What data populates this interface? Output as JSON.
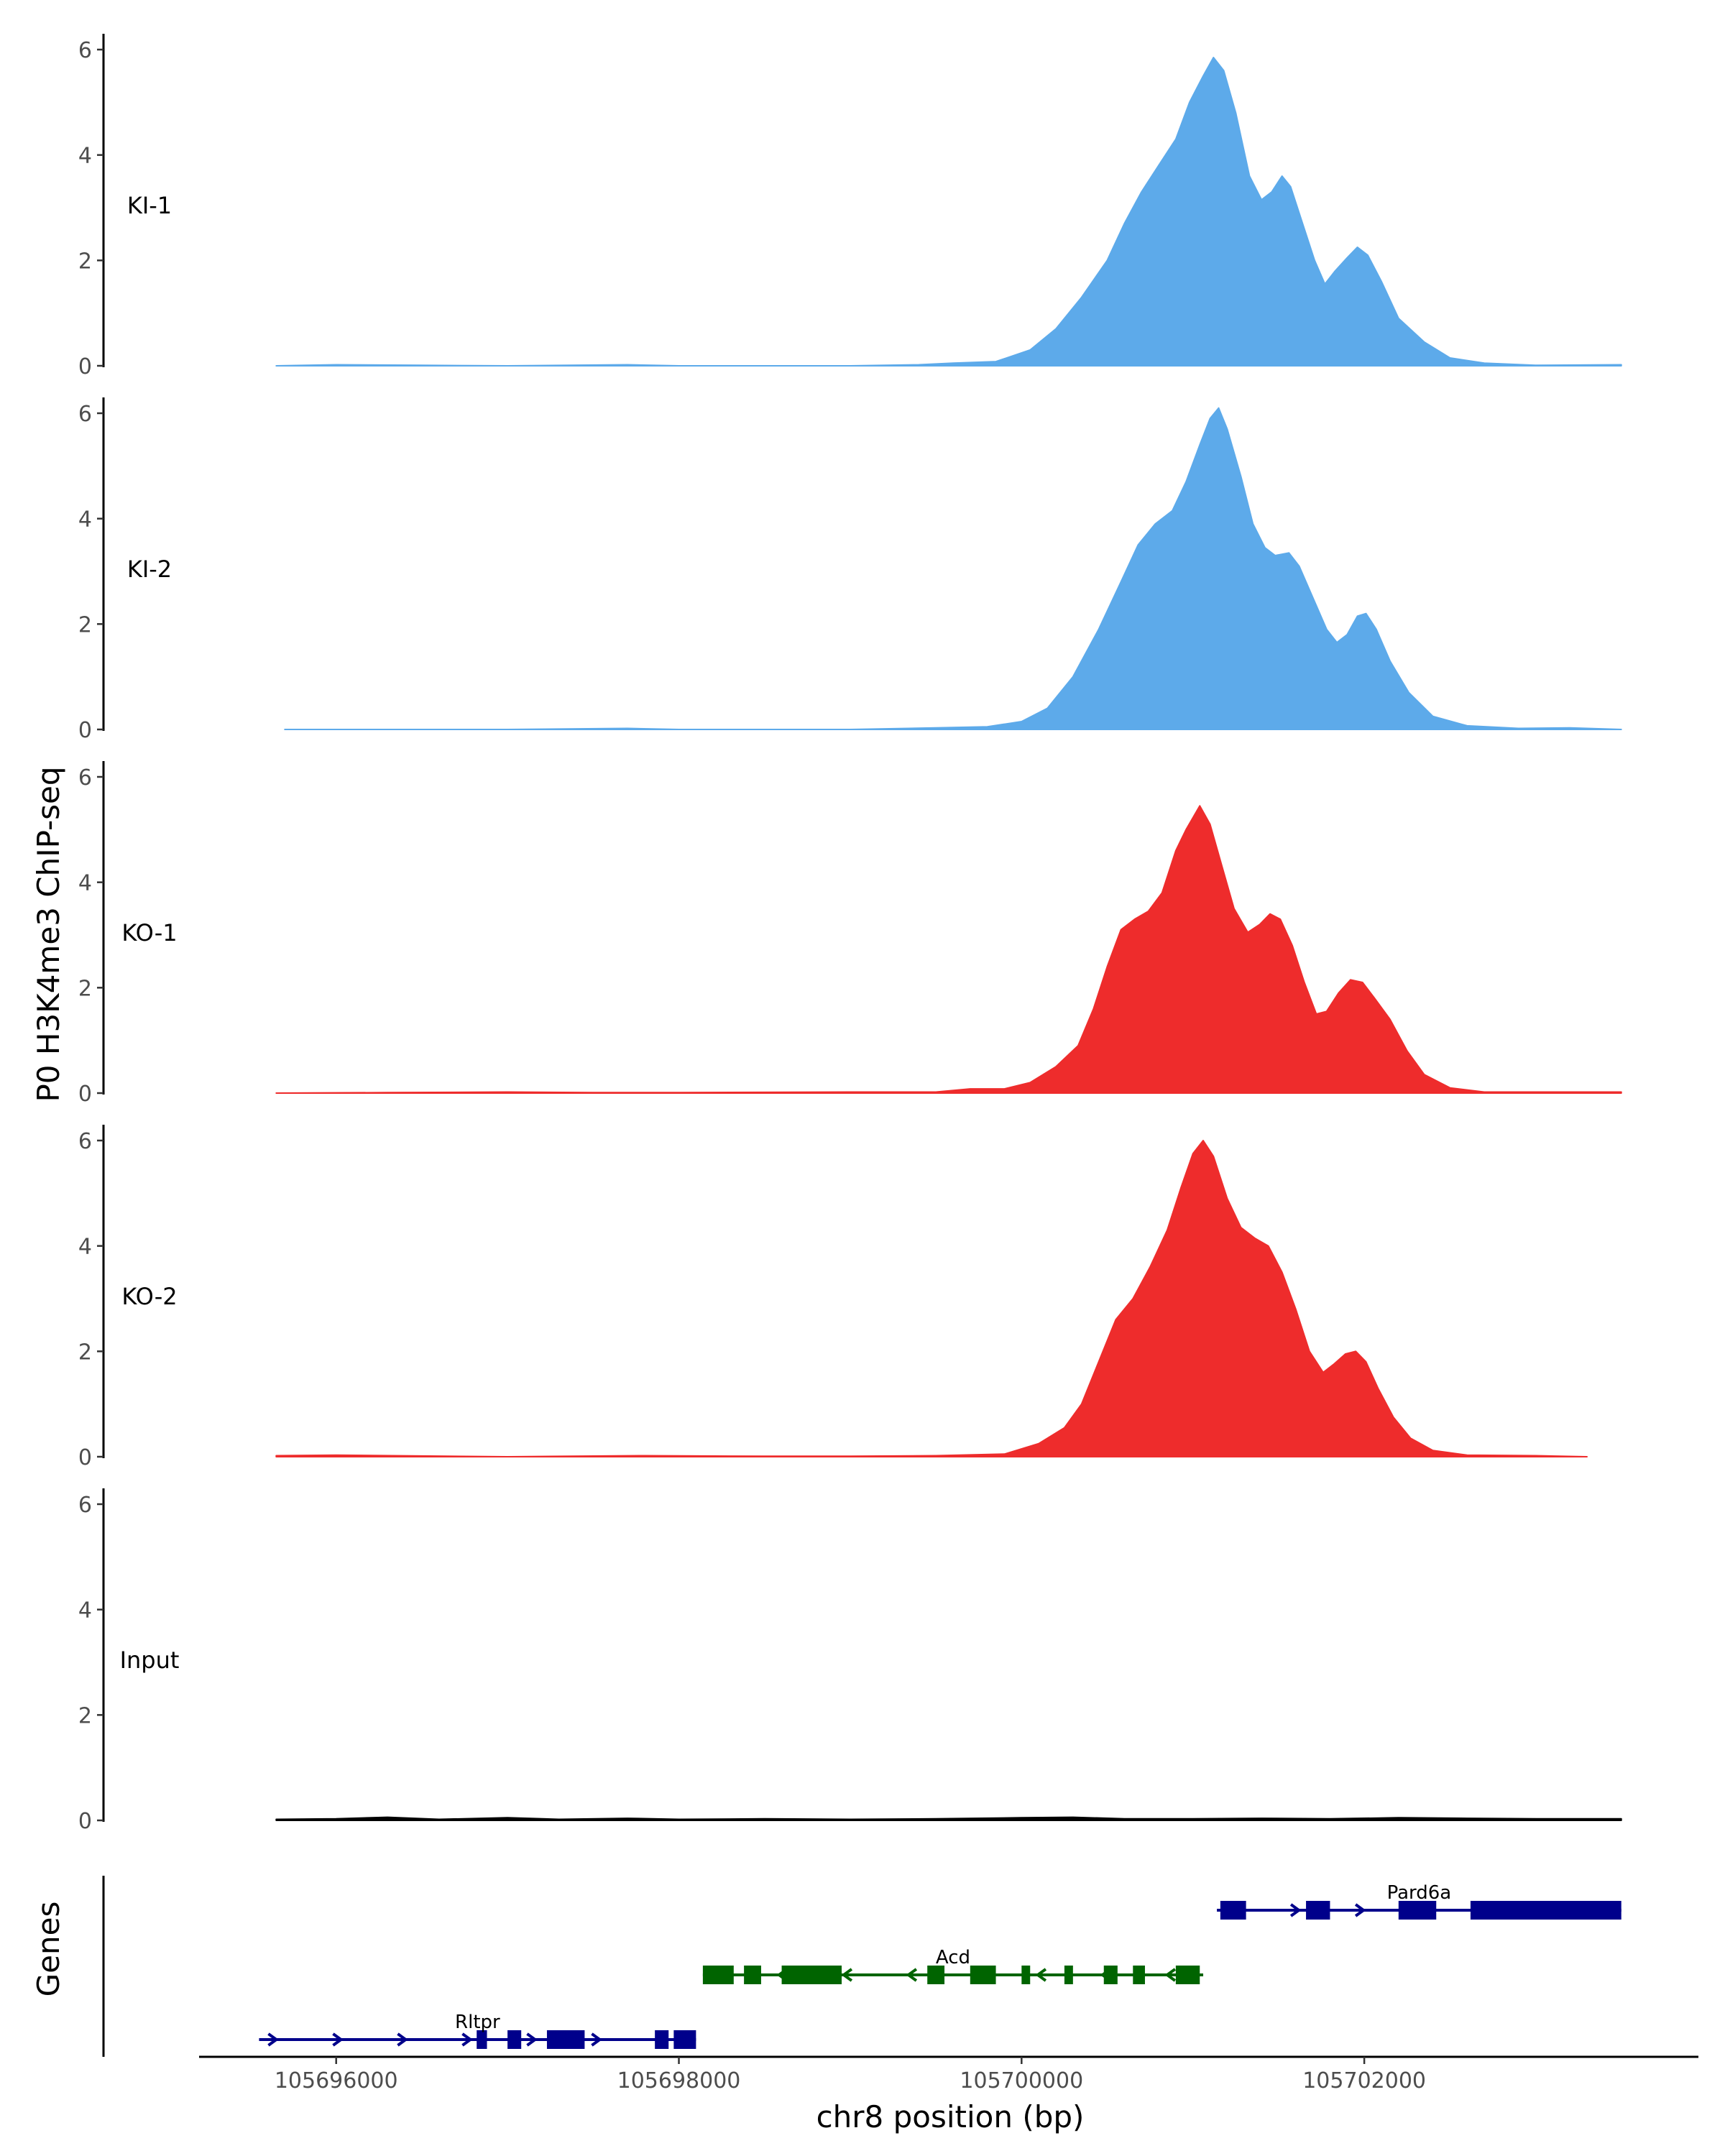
{
  "chart_data": {
    "type": "area",
    "ylabel": "P0 H3K4me3 ChIP-seq",
    "xlabel": "chr8 position (bp)",
    "genes_axis_label": "Genes",
    "xlim": [
      105695200,
      105703950
    ],
    "ylim": [
      0,
      6.3
    ],
    "x_ticks": [
      105696000,
      105698000,
      105700000,
      105702000
    ],
    "x_tick_labels": [
      "105696000",
      "105698000",
      "105700000",
      "105702000"
    ],
    "y_ticks": [
      0,
      2,
      4,
      6
    ],
    "y_tick_labels": [
      "0",
      "2",
      "4",
      "6"
    ],
    "tracks": [
      {
        "name": "KI-1",
        "color": "#5DAAEA",
        "points": [
          [
            105695650,
            0
          ],
          [
            105696000,
            0.02
          ],
          [
            105696500,
            0.01
          ],
          [
            105697000,
            0
          ],
          [
            105697700,
            0.02
          ],
          [
            105698000,
            0
          ],
          [
            105699000,
            0
          ],
          [
            105699400,
            0.02
          ],
          [
            105699600,
            0.05
          ],
          [
            105699850,
            0.08
          ],
          [
            105700050,
            0.3
          ],
          [
            105700200,
            0.7
          ],
          [
            105700350,
            1.3
          ],
          [
            105700500,
            2.0
          ],
          [
            105700600,
            2.7
          ],
          [
            105700700,
            3.3
          ],
          [
            105700800,
            3.8
          ],
          [
            105700900,
            4.3
          ],
          [
            105700980,
            5.0
          ],
          [
            105701060,
            5.5
          ],
          [
            105701120,
            5.85
          ],
          [
            105701180,
            5.6
          ],
          [
            105701250,
            4.8
          ],
          [
            105701330,
            3.6
          ],
          [
            105701400,
            3.15
          ],
          [
            105701460,
            3.3
          ],
          [
            105701520,
            3.6
          ],
          [
            105701570,
            3.4
          ],
          [
            105701640,
            2.7
          ],
          [
            105701710,
            2.0
          ],
          [
            105701770,
            1.55
          ],
          [
            105701830,
            1.8
          ],
          [
            105701900,
            2.05
          ],
          [
            105701960,
            2.25
          ],
          [
            105702020,
            2.1
          ],
          [
            105702100,
            1.6
          ],
          [
            105702200,
            0.9
          ],
          [
            105702350,
            0.45
          ],
          [
            105702500,
            0.15
          ],
          [
            105702700,
            0.05
          ],
          [
            105703000,
            0.01
          ],
          [
            105703500,
            0.02
          ]
        ]
      },
      {
        "name": "KI-2",
        "color": "#5DAAEA",
        "points": [
          [
            105695700,
            0
          ],
          [
            105697000,
            0
          ],
          [
            105697700,
            0.02
          ],
          [
            105698000,
            0
          ],
          [
            105699000,
            0
          ],
          [
            105699500,
            0.03
          ],
          [
            105699800,
            0.05
          ],
          [
            105700000,
            0.15
          ],
          [
            105700150,
            0.4
          ],
          [
            105700300,
            1.0
          ],
          [
            105700450,
            1.9
          ],
          [
            105700580,
            2.8
          ],
          [
            105700680,
            3.5
          ],
          [
            105700780,
            3.9
          ],
          [
            105700880,
            4.15
          ],
          [
            105700960,
            4.7
          ],
          [
            105701040,
            5.4
          ],
          [
            105701100,
            5.9
          ],
          [
            105701150,
            6.1
          ],
          [
            105701200,
            5.7
          ],
          [
            105701280,
            4.8
          ],
          [
            105701350,
            3.9
          ],
          [
            105701420,
            3.45
          ],
          [
            105701480,
            3.3
          ],
          [
            105701560,
            3.35
          ],
          [
            105701620,
            3.1
          ],
          [
            105701700,
            2.5
          ],
          [
            105701780,
            1.9
          ],
          [
            105701840,
            1.65
          ],
          [
            105701900,
            1.8
          ],
          [
            105701960,
            2.15
          ],
          [
            105702010,
            2.2
          ],
          [
            105702070,
            1.9
          ],
          [
            105702150,
            1.3
          ],
          [
            105702260,
            0.7
          ],
          [
            105702400,
            0.25
          ],
          [
            105702600,
            0.07
          ],
          [
            105702900,
            0.02
          ],
          [
            105703200,
            0.03
          ],
          [
            105703500,
            0
          ]
        ]
      },
      {
        "name": "KO-1",
        "color": "#EE2C2C",
        "points": [
          [
            105695650,
            0
          ],
          [
            105696300,
            0.01
          ],
          [
            105697000,
            0.02
          ],
          [
            105697500,
            0.01
          ],
          [
            105698000,
            0.01
          ],
          [
            105699000,
            0.02
          ],
          [
            105699500,
            0.02
          ],
          [
            105699700,
            0.08
          ],
          [
            105699900,
            0.08
          ],
          [
            105700050,
            0.2
          ],
          [
            105700200,
            0.5
          ],
          [
            105700330,
            0.9
          ],
          [
            105700420,
            1.6
          ],
          [
            105700500,
            2.4
          ],
          [
            105700580,
            3.1
          ],
          [
            105700660,
            3.3
          ],
          [
            105700740,
            3.45
          ],
          [
            105700820,
            3.8
          ],
          [
            105700900,
            4.6
          ],
          [
            105700960,
            5.0
          ],
          [
            105701040,
            5.45
          ],
          [
            105701100,
            5.1
          ],
          [
            105701170,
            4.3
          ],
          [
            105701240,
            3.5
          ],
          [
            105701320,
            3.05
          ],
          [
            105701390,
            3.2
          ],
          [
            105701450,
            3.4
          ],
          [
            105701510,
            3.3
          ],
          [
            105701580,
            2.8
          ],
          [
            105701650,
            2.1
          ],
          [
            105701720,
            1.5
          ],
          [
            105701780,
            1.55
          ],
          [
            105701850,
            1.9
          ],
          [
            105701920,
            2.15
          ],
          [
            105701990,
            2.1
          ],
          [
            105702060,
            1.8
          ],
          [
            105702150,
            1.4
          ],
          [
            105702250,
            0.8
          ],
          [
            105702350,
            0.35
          ],
          [
            105702500,
            0.1
          ],
          [
            105702700,
            0.02
          ],
          [
            105703000,
            0.02
          ],
          [
            105703500,
            0.02
          ]
        ]
      },
      {
        "name": "KO-2",
        "color": "#EE2C2C",
        "points": [
          [
            105695650,
            0.02
          ],
          [
            105696000,
            0.03
          ],
          [
            105697000,
            0
          ],
          [
            105697800,
            0.02
          ],
          [
            105698500,
            0.01
          ],
          [
            105699000,
            0.01
          ],
          [
            105699500,
            0.02
          ],
          [
            105699900,
            0.05
          ],
          [
            105700100,
            0.25
          ],
          [
            105700250,
            0.55
          ],
          [
            105700350,
            1.0
          ],
          [
            105700450,
            1.8
          ],
          [
            105700550,
            2.6
          ],
          [
            105700650,
            3.0
          ],
          [
            105700750,
            3.6
          ],
          [
            105700850,
            4.3
          ],
          [
            105700930,
            5.1
          ],
          [
            105701000,
            5.75
          ],
          [
            105701060,
            6.0
          ],
          [
            105701120,
            5.7
          ],
          [
            105701200,
            4.9
          ],
          [
            105701280,
            4.35
          ],
          [
            105701360,
            4.15
          ],
          [
            105701440,
            4.0
          ],
          [
            105701520,
            3.5
          ],
          [
            105701600,
            2.8
          ],
          [
            105701680,
            2.0
          ],
          [
            105701760,
            1.6
          ],
          [
            105701820,
            1.75
          ],
          [
            105701890,
            1.95
          ],
          [
            105701950,
            2.0
          ],
          [
            105702010,
            1.8
          ],
          [
            105702080,
            1.3
          ],
          [
            105702170,
            0.75
          ],
          [
            105702270,
            0.35
          ],
          [
            105702400,
            0.12
          ],
          [
            105702600,
            0.03
          ],
          [
            105703000,
            0.02
          ],
          [
            105703300,
            0
          ]
        ]
      },
      {
        "name": "Input",
        "color": "#000000",
        "points": [
          [
            105695650,
            0.02
          ],
          [
            105696000,
            0.03
          ],
          [
            105696300,
            0.06
          ],
          [
            105696600,
            0.02
          ],
          [
            105697000,
            0.05
          ],
          [
            105697300,
            0.02
          ],
          [
            105697700,
            0.04
          ],
          [
            105698000,
            0.02
          ],
          [
            105698500,
            0.03
          ],
          [
            105699000,
            0.02
          ],
          [
            105699500,
            0.03
          ],
          [
            105700000,
            0.05
          ],
          [
            105700300,
            0.06
          ],
          [
            105700600,
            0.03
          ],
          [
            105701000,
            0.03
          ],
          [
            105701400,
            0.04
          ],
          [
            105701800,
            0.03
          ],
          [
            105702200,
            0.05
          ],
          [
            105702600,
            0.04
          ],
          [
            105703000,
            0.03
          ],
          [
            105703500,
            0.03
          ]
        ]
      }
    ],
    "genes": [
      {
        "name": "Pard6a",
        "strand": "+",
        "color": "#00008B",
        "row": 0,
        "start": 105701140,
        "end": 105703500,
        "exons": [
          [
            105701160,
            105701310
          ],
          [
            105701660,
            105701800
          ],
          [
            105702200,
            105702420
          ],
          [
            105702620,
            105703500
          ]
        ]
      },
      {
        "name": "Acd",
        "strand": "-",
        "color": "#006400",
        "row": 1,
        "start": 105698140,
        "end": 105701060,
        "exons": [
          [
            105698140,
            105698320
          ],
          [
            105698380,
            105698480
          ],
          [
            105698600,
            105698950
          ],
          [
            105699450,
            105699550
          ],
          [
            105699700,
            105699850
          ],
          [
            105700000,
            105700050
          ],
          [
            105700250,
            105700300
          ],
          [
            105700480,
            105700560
          ],
          [
            105700650,
            105700720
          ],
          [
            105700900,
            105701040
          ]
        ]
      },
      {
        "name": "Rltpr",
        "strand": "+",
        "color": "#00008B",
        "row": 2,
        "start": 105695550,
        "end": 105698100,
        "exons": [
          [
            105696820,
            105696880
          ],
          [
            105697000,
            105697080
          ],
          [
            105697230,
            105697450
          ],
          [
            105697860,
            105697940
          ],
          [
            105697970,
            105698100
          ]
        ]
      }
    ]
  }
}
